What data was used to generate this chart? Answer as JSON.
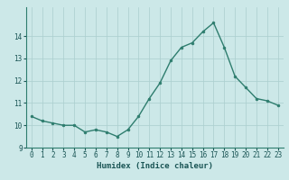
{
  "x": [
    0,
    1,
    2,
    3,
    4,
    5,
    6,
    7,
    8,
    9,
    10,
    11,
    12,
    13,
    14,
    15,
    16,
    17,
    18,
    19,
    20,
    21,
    22,
    23
  ],
  "y": [
    10.4,
    10.2,
    10.1,
    10.0,
    10.0,
    9.7,
    9.8,
    9.7,
    9.5,
    9.8,
    10.4,
    11.2,
    11.9,
    12.9,
    13.5,
    13.7,
    14.2,
    14.6,
    13.5,
    12.2,
    11.7,
    11.2,
    11.1,
    10.9
  ],
  "line_color": "#2e7d6e",
  "marker": "o",
  "marker_size": 2.0,
  "bg_color": "#cce8e8",
  "grid_color": "#aacece",
  "xlabel": "Humidex (Indice chaleur)",
  "ylim": [
    9,
    15
  ],
  "xlim": [
    -0.5,
    23.5
  ],
  "yticks": [
    9,
    10,
    11,
    12,
    13,
    14
  ],
  "xticks": [
    0,
    1,
    2,
    3,
    4,
    5,
    6,
    7,
    8,
    9,
    10,
    11,
    12,
    13,
    14,
    15,
    16,
    17,
    18,
    19,
    20,
    21,
    22,
    23
  ],
  "tick_fontsize": 5.5,
  "label_fontsize": 6.5,
  "linewidth": 1.0
}
